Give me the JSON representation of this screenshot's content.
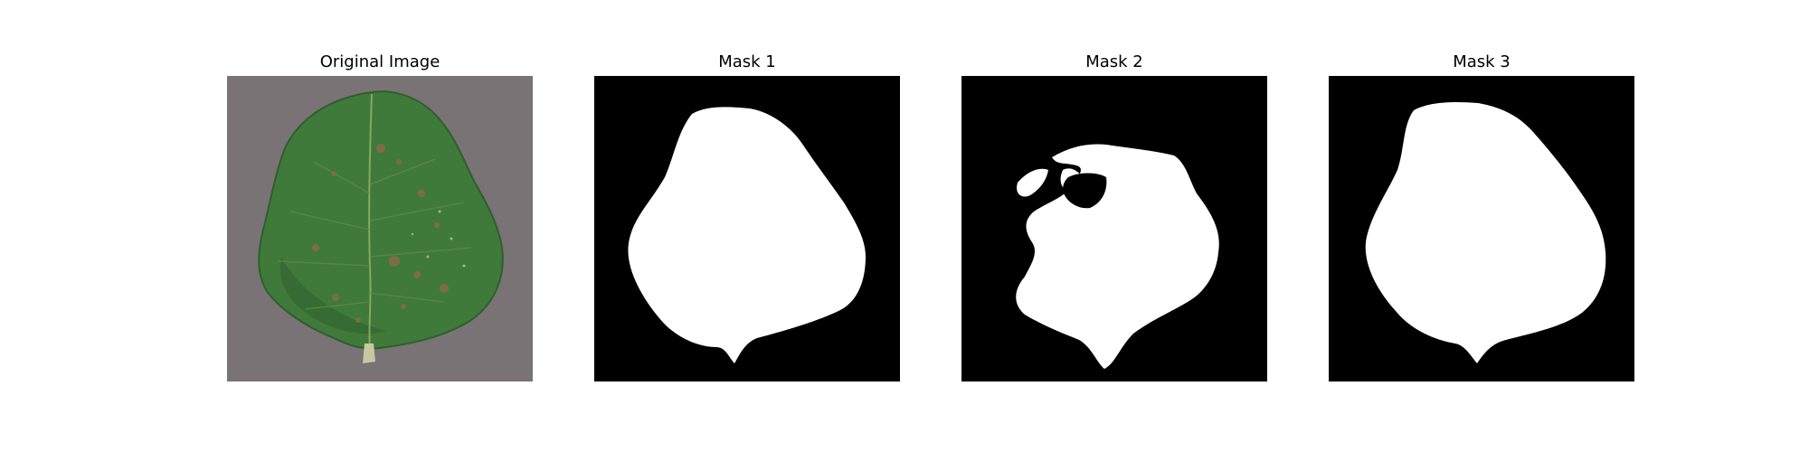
{
  "panels": [
    {
      "title": "Original Image",
      "kind": "photo",
      "subject": "leaf-photo"
    },
    {
      "title": "Mask 1",
      "kind": "mask",
      "subject": "leaf-mask"
    },
    {
      "title": "Mask 2",
      "kind": "mask",
      "subject": "leaf-mask"
    },
    {
      "title": "Mask 3",
      "kind": "mask",
      "subject": "leaf-mask"
    }
  ],
  "colors": {
    "background": "#ffffff",
    "mask_background": "#000000",
    "mask_foreground": "#ffffff",
    "photo_background": "#7c7679",
    "leaf_green": "#3f7a3a",
    "leaf_dark": "#2f5f2d",
    "leaf_spots": "#8a6a4a"
  }
}
